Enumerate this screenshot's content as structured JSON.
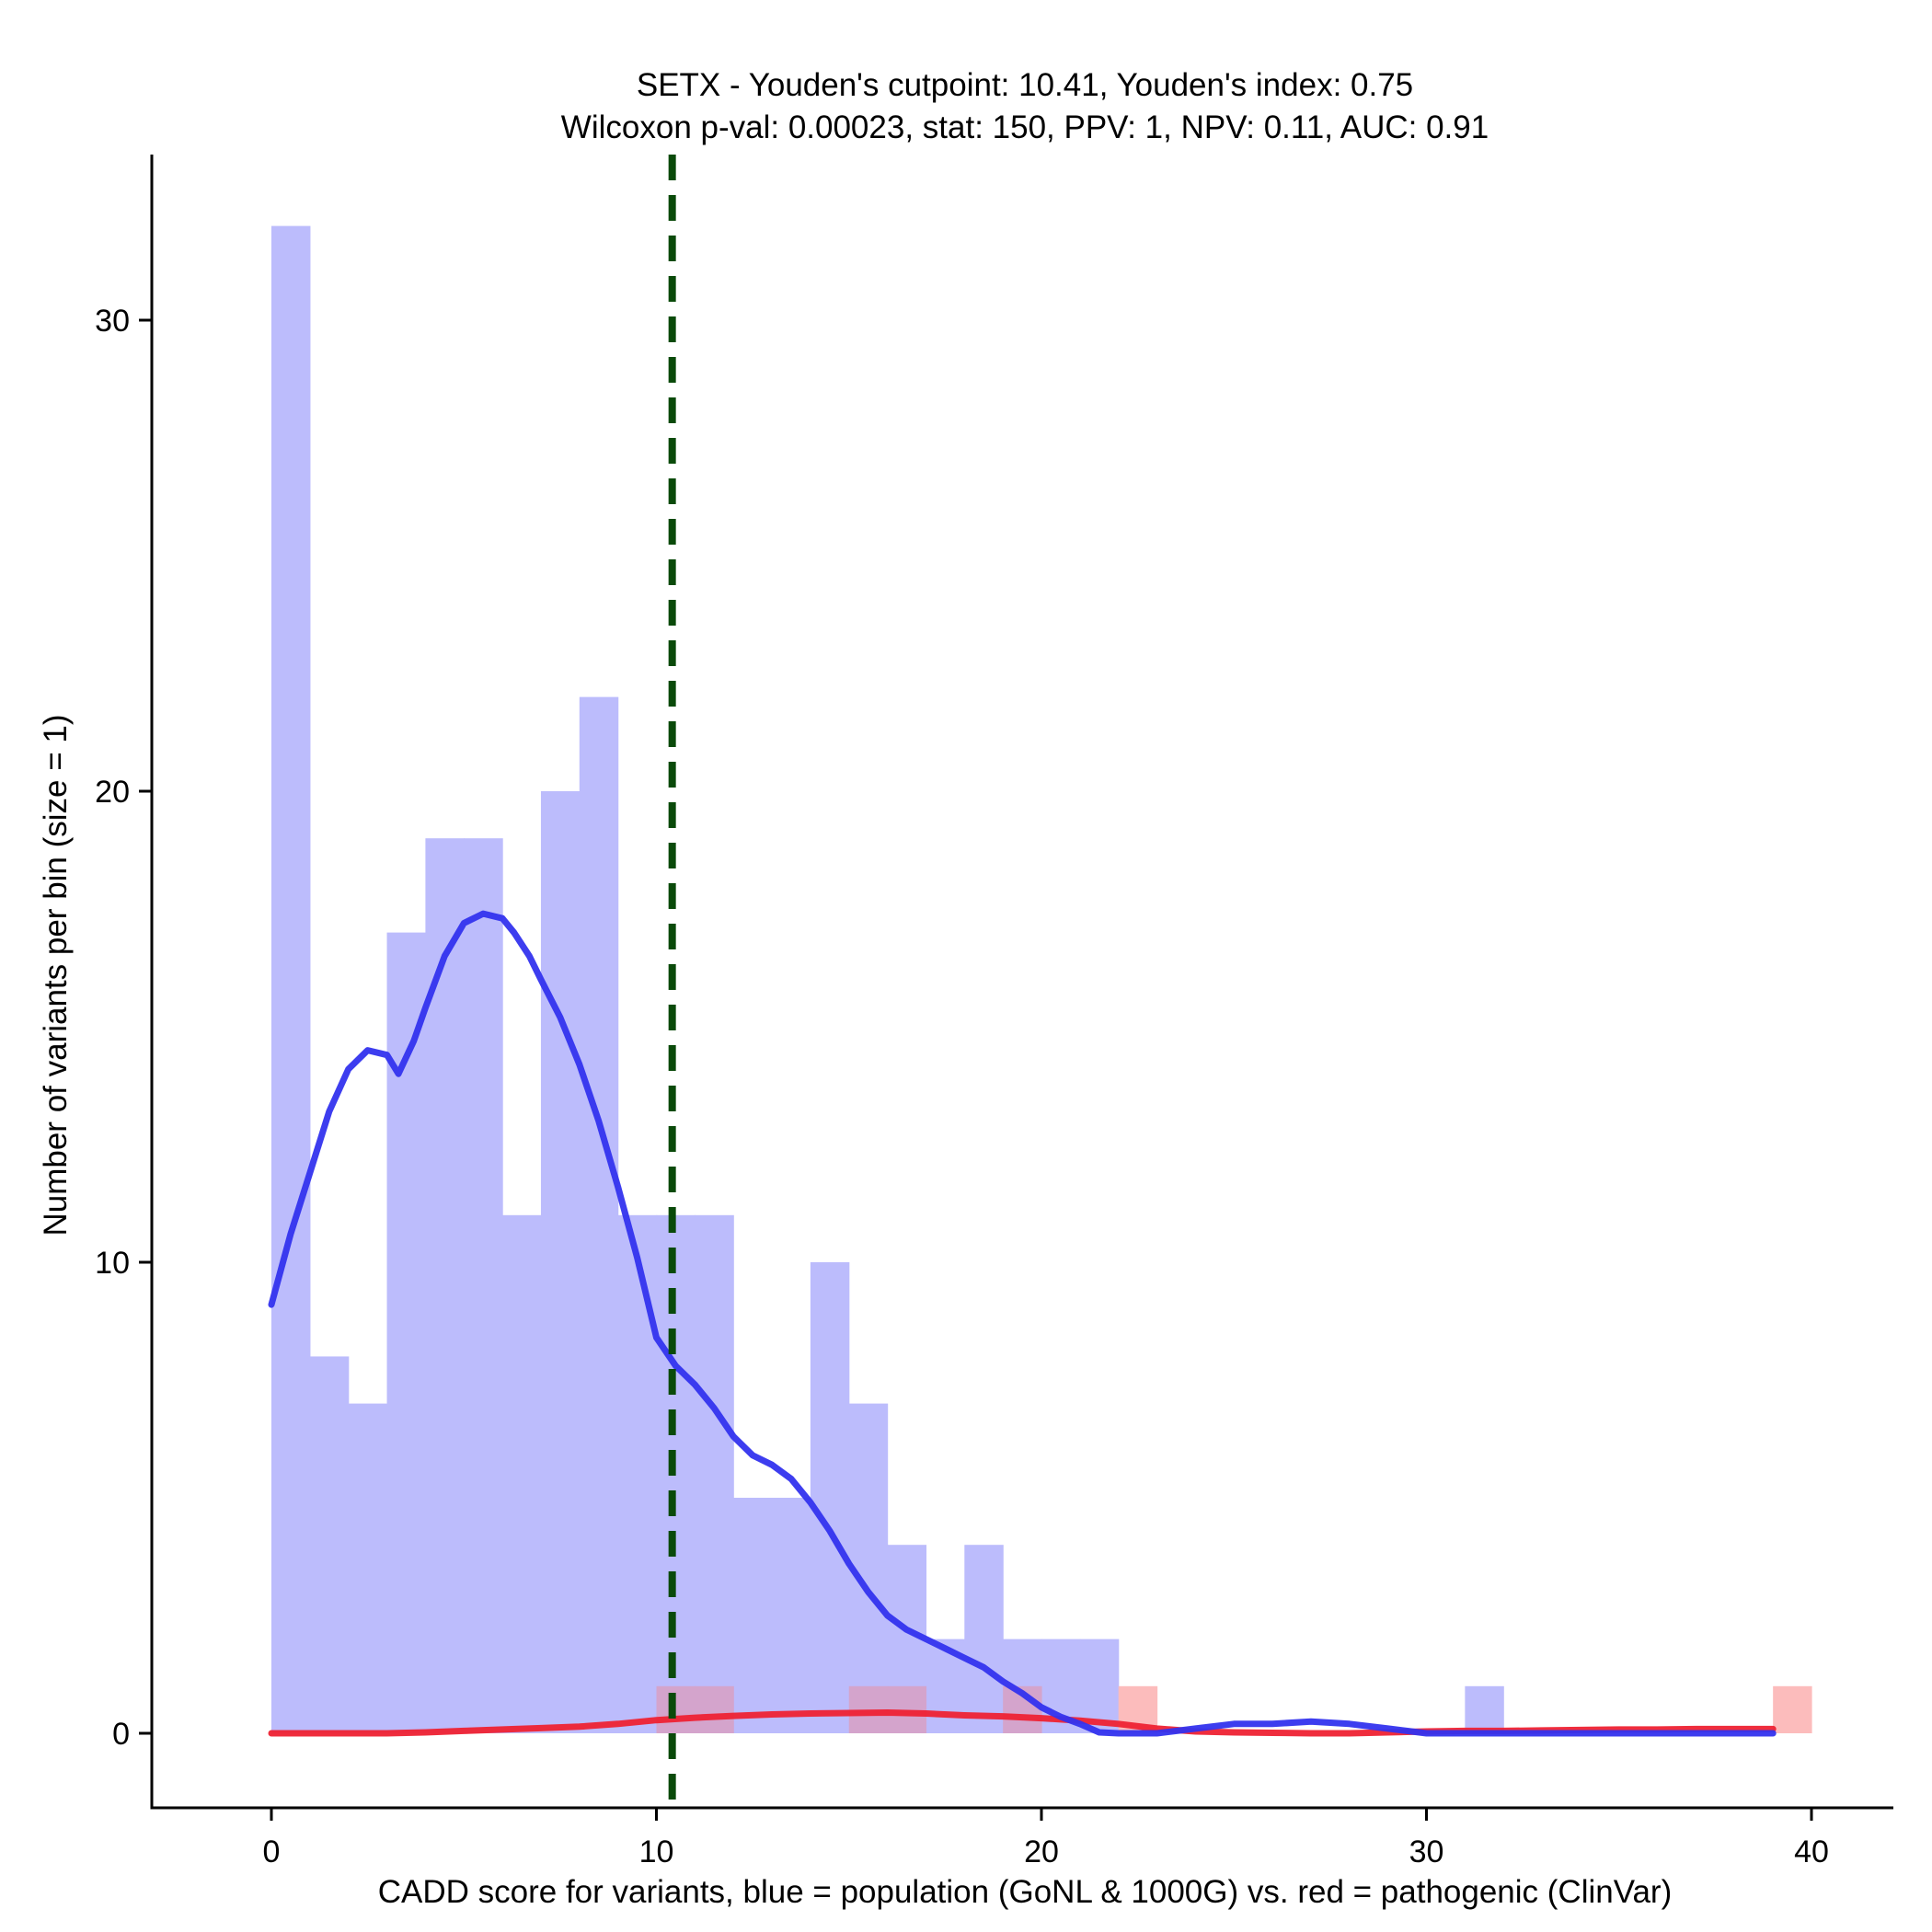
{
  "chart_data": {
    "type": "histogram",
    "title_line1": "SETX - Youden's cutpoint: 10.41, Youden's index: 0.75",
    "title_line2": "Wilcoxon p-val: 0.00023, stat: 150, PPV: 1, NPV: 0.11, AUC: 0.91",
    "xlabel": "CADD score for variants, blue = population (GoNL & 1000G) vs. red = pathogenic (ClinVar)",
    "ylabel": "Number of variants per bin (size = 1)",
    "xlim": [
      -3.1,
      42
    ],
    "ylim": [
      -1.6,
      33.6
    ],
    "xticks": [
      0,
      10,
      20,
      30,
      40
    ],
    "xtick_labels": [
      "0",
      "10",
      "20",
      "30",
      "40"
    ],
    "yticks": [
      0,
      10,
      20,
      30
    ],
    "ytick_labels": [
      "0",
      "10",
      "20",
      "30"
    ],
    "bin_size": 1,
    "cutpoint": 10.41,
    "colors": {
      "population_fill": "#bcbcfc",
      "pathogenic_fill": "#fcbcbc",
      "overlap_fill": "#d4a4cc",
      "population_line": "#3333ee",
      "pathogenic_line": "#ee2233",
      "cutpoint_line": "#0a4a0a"
    },
    "series": [
      {
        "name": "population (GoNL & 1000G)",
        "bin_starts": [
          0,
          1,
          2,
          3,
          4,
          5,
          6,
          7,
          8,
          9,
          10,
          11,
          12,
          13,
          14,
          15,
          16,
          17,
          18,
          19,
          20,
          21,
          31
        ],
        "counts": [
          32,
          8,
          7,
          17,
          19,
          19,
          11,
          20,
          22,
          11,
          11,
          11,
          5,
          5,
          10,
          7,
          4,
          2,
          4,
          2,
          2,
          2,
          1
        ]
      },
      {
        "name": "pathogenic (ClinVar)",
        "bin_starts": [
          10,
          11,
          15,
          16,
          19,
          22,
          39
        ],
        "counts": [
          1,
          1,
          1,
          1,
          1,
          1,
          1
        ]
      }
    ],
    "density_population": {
      "x": [
        0,
        0.5,
        1,
        1.5,
        2,
        2.5,
        3,
        3.3,
        3.7,
        4,
        4.5,
        5,
        5.5,
        6,
        6.3,
        6.7,
        7,
        7.5,
        8,
        8.5,
        9,
        9.5,
        10,
        10.5,
        11,
        11.5,
        12,
        12.5,
        13,
        13.5,
        14,
        14.5,
        15,
        15.5,
        16,
        16.5,
        17,
        17.5,
        18,
        18.5,
        19,
        19.5,
        20,
        20.5,
        21,
        21.5,
        22,
        22.5,
        23,
        24,
        25,
        26,
        27,
        28,
        29,
        30,
        31,
        32,
        33,
        34,
        35,
        36,
        37,
        38,
        39
      ],
      "y": [
        9.1,
        10.6,
        11.9,
        13.2,
        14.1,
        14.5,
        14.4,
        14.0,
        14.7,
        15.4,
        16.5,
        17.2,
        17.4,
        17.3,
        17.0,
        16.5,
        16.0,
        15.2,
        14.2,
        13.0,
        11.6,
        10.1,
        8.4,
        7.8,
        7.4,
        6.9,
        6.3,
        5.9,
        5.7,
        5.4,
        4.9,
        4.3,
        3.6,
        3.0,
        2.5,
        2.2,
        2.0,
        1.8,
        1.6,
        1.4,
        1.1,
        0.85,
        0.55,
        0.35,
        0.2,
        0.02,
        0,
        0,
        0,
        0.1,
        0.2,
        0.2,
        0.25,
        0.2,
        0.1,
        0,
        0,
        0,
        0,
        0,
        0,
        0,
        0,
        0,
        0
      ]
    },
    "density_pathogenic": {
      "x": [
        0,
        1,
        2,
        3,
        4,
        5,
        6,
        7,
        8,
        9,
        10,
        11,
        12,
        13,
        14,
        15,
        16,
        17,
        18,
        19,
        20,
        21,
        22,
        23,
        24,
        25,
        26,
        27,
        28,
        29,
        30,
        31,
        32,
        33,
        34,
        35,
        36,
        37,
        38,
        39
      ],
      "y": [
        0,
        0,
        0,
        0,
        0.02,
        0.05,
        0.08,
        0.11,
        0.14,
        0.2,
        0.28,
        0.33,
        0.37,
        0.4,
        0.42,
        0.43,
        0.44,
        0.42,
        0.38,
        0.36,
        0.32,
        0.27,
        0.2,
        0.1,
        0.04,
        0.02,
        0.01,
        0,
        0,
        0.02,
        0.04,
        0.05,
        0.05,
        0.06,
        0.07,
        0.08,
        0.08,
        0.09,
        0.09,
        0.09
      ]
    }
  }
}
